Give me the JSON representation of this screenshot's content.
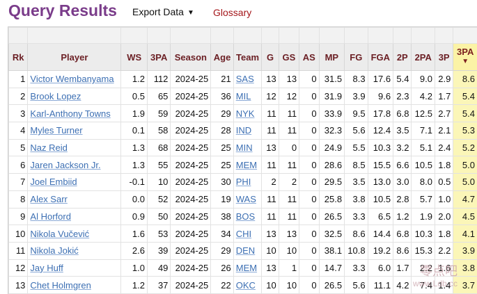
{
  "header": {
    "title": "Query Results",
    "export_label": "Export Data",
    "export_caret": "▼",
    "glossary_label": "Glossary"
  },
  "table": {
    "columns": [
      "Rk",
      "Player",
      "WS",
      "3PA",
      "Season",
      "Age",
      "Team",
      "G",
      "GS",
      "AS",
      "MP",
      "FG",
      "FGA",
      "2P",
      "2PA",
      "3P",
      "3PA"
    ],
    "sorted_column_caret": "▼",
    "rows": [
      [
        "1",
        "Victor Wembanyama",
        "1.2",
        "112",
        "2024-25",
        "21",
        "SAS",
        "13",
        "13",
        "0",
        "31.5",
        "8.3",
        "17.6",
        "5.4",
        "9.0",
        "2.9",
        "8.6"
      ],
      [
        "2",
        "Brook Lopez",
        "0.5",
        "65",
        "2024-25",
        "36",
        "MIL",
        "12",
        "12",
        "0",
        "31.9",
        "3.9",
        "9.6",
        "2.3",
        "4.2",
        "1.7",
        "5.4"
      ],
      [
        "3",
        "Karl-Anthony Towns",
        "1.9",
        "59",
        "2024-25",
        "29",
        "NYK",
        "11",
        "11",
        "0",
        "33.9",
        "9.5",
        "17.8",
        "6.8",
        "12.5",
        "2.7",
        "5.4"
      ],
      [
        "4",
        "Myles Turner",
        "0.1",
        "58",
        "2024-25",
        "28",
        "IND",
        "11",
        "11",
        "0",
        "32.3",
        "5.6",
        "12.4",
        "3.5",
        "7.1",
        "2.1",
        "5.3"
      ],
      [
        "5",
        "Naz Reid",
        "1.3",
        "68",
        "2024-25",
        "25",
        "MIN",
        "13",
        "0",
        "0",
        "24.9",
        "5.5",
        "10.3",
        "3.2",
        "5.1",
        "2.4",
        "5.2"
      ],
      [
        "6",
        "Jaren Jackson Jr.",
        "1.3",
        "55",
        "2024-25",
        "25",
        "MEM",
        "11",
        "11",
        "0",
        "28.6",
        "8.5",
        "15.5",
        "6.6",
        "10.5",
        "1.8",
        "5.0"
      ],
      [
        "7",
        "Joel Embiid",
        "-0.1",
        "10",
        "2024-25",
        "30",
        "PHI",
        "2",
        "2",
        "0",
        "29.5",
        "3.5",
        "13.0",
        "3.0",
        "8.0",
        "0.5",
        "5.0"
      ],
      [
        "8",
        "Alex Sarr",
        "0.0",
        "52",
        "2024-25",
        "19",
        "WAS",
        "11",
        "11",
        "0",
        "25.8",
        "3.8",
        "10.5",
        "2.8",
        "5.7",
        "1.0",
        "4.7"
      ],
      [
        "9",
        "Al Horford",
        "0.9",
        "50",
        "2024-25",
        "38",
        "BOS",
        "11",
        "11",
        "0",
        "26.5",
        "3.3",
        "6.5",
        "1.2",
        "1.9",
        "2.0",
        "4.5"
      ],
      [
        "10",
        "Nikola Vučević",
        "1.6",
        "53",
        "2024-25",
        "34",
        "CHI",
        "13",
        "13",
        "0",
        "32.5",
        "8.6",
        "14.4",
        "6.8",
        "10.3",
        "1.8",
        "4.1"
      ],
      [
        "11",
        "Nikola Jokić",
        "2.6",
        "39",
        "2024-25",
        "29",
        "DEN",
        "10",
        "10",
        "0",
        "38.1",
        "10.8",
        "19.2",
        "8.6",
        "15.3",
        "2.2",
        "3.9"
      ],
      [
        "12",
        "Jay Huff",
        "1.0",
        "49",
        "2024-25",
        "26",
        "MEM",
        "13",
        "1",
        "0",
        "14.7",
        "3.3",
        "6.0",
        "1.7",
        "2.2",
        "1.6",
        "3.8"
      ],
      [
        "13",
        "Chet Holmgren",
        "1.2",
        "37",
        "2024-25",
        "22",
        "OKC",
        "10",
        "10",
        "0",
        "26.5",
        "5.6",
        "11.1",
        "4.2",
        "7.4",
        "1.4",
        "3.7"
      ]
    ]
  },
  "watermark": {
    "text": "零点吧",
    "sub": "www.Ldb.cc"
  },
  "colors": {
    "title": "#7a3c8a",
    "link": "#3c6fb3",
    "glossary": "#a4161a",
    "header_text": "#6b1f24",
    "sorted_highlight": "#fbf6b8"
  }
}
